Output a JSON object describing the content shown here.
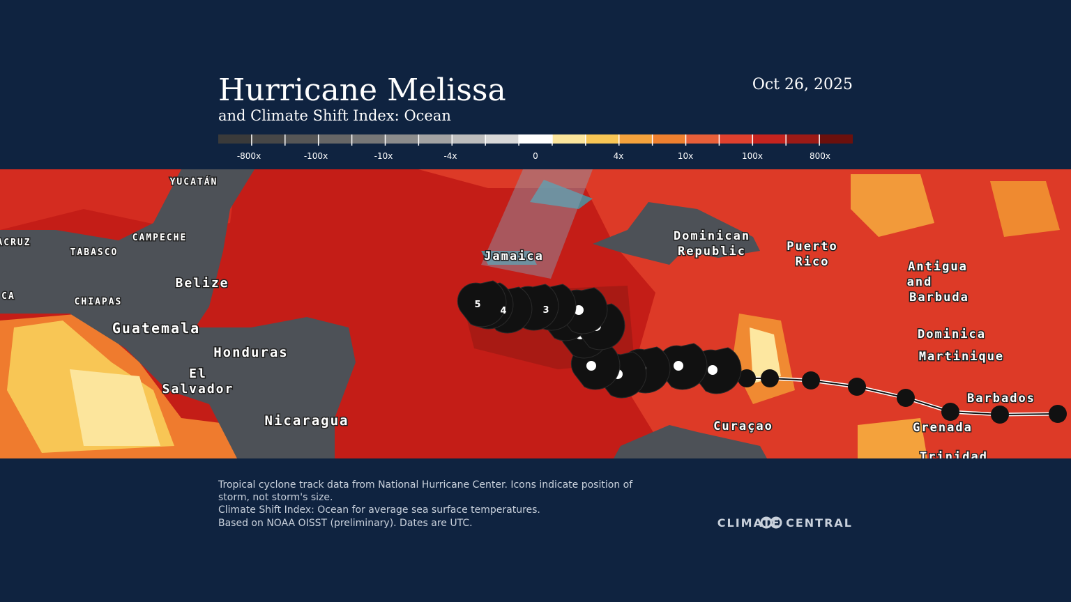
{
  "header": {
    "title": "Hurricane Melissa",
    "subtitle": "and Climate Shift Index: Ocean",
    "date": "Oct 26, 2025"
  },
  "legend": {
    "labels": [
      "-800x",
      "-100x",
      "-10x",
      "-4x",
      "0",
      "4x",
      "10x",
      "100x",
      "800x"
    ],
    "colors": [
      "#3a3a3a",
      "#474747",
      "#565656",
      "#666666",
      "#777777",
      "#8c8c8c",
      "#a3a3a3",
      "#bdbdbd",
      "#d8d8d8",
      "#ffffff",
      "#fce59c",
      "#f8c655",
      "#f4a23c",
      "#ef802f",
      "#e85f39",
      "#df402e",
      "#c6231e",
      "#9c1a16",
      "#6b100d"
    ]
  },
  "map": {
    "labels": [
      "YUCATÁN",
      "CAMPECHE",
      "TABASCO",
      "ACRUZ",
      "CHIAPAS",
      "CA",
      "Belize",
      "Guatemala",
      "Honduras",
      "El",
      "Salvador",
      "Nicaragua",
      "Jamaica",
      "Dominican",
      "Republic",
      "Puerto",
      "Rico",
      "Antigua",
      "and",
      "Barbuda",
      "Dominica",
      "Martinique",
      "Barbados",
      "Grenada",
      "Curaçao",
      "Trinidad"
    ],
    "categories": [
      "5",
      "4",
      "3"
    ]
  },
  "footer": {
    "notes": [
      "Tropical cyclone track data from National Hurricane Center. Icons indicate position of",
      "storm, not storm's size.",
      "Climate Shift Index: Ocean for average sea surface temperatures.",
      "Based on NOAA OISST (preliminary). Dates are UTC."
    ],
    "logo": "CLIMATE CENTRAL"
  }
}
